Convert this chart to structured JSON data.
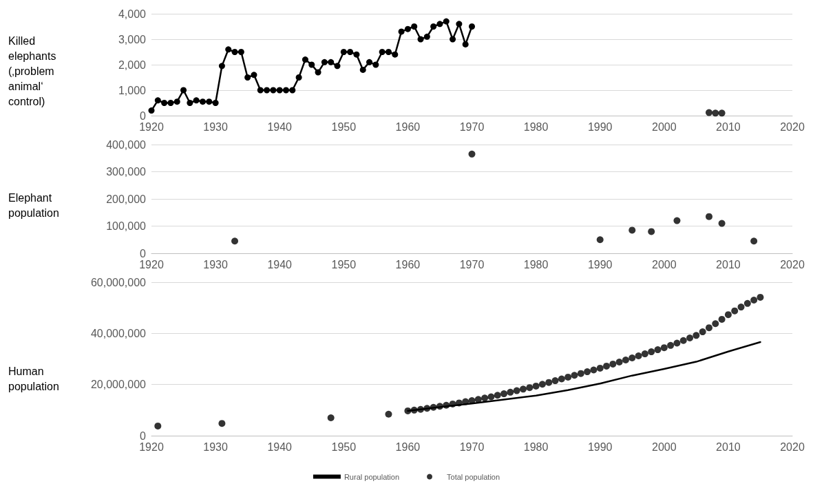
{
  "chart_data": [
    {
      "type": "line",
      "ylabel": "Killed elephants (‚problem animal‘ control)",
      "xlim": [
        1920,
        2020
      ],
      "xticks": [
        1920,
        1930,
        1940,
        1950,
        1960,
        1970,
        1980,
        1990,
        2000,
        2010,
        2020
      ],
      "ylim": [
        0,
        4000
      ],
      "yticks": [
        {
          "value": 0,
          "label": "0"
        },
        {
          "value": 1000,
          "label": "1,000"
        },
        {
          "value": 2000,
          "label": "2,000"
        },
        {
          "value": 3000,
          "label": "3,000"
        },
        {
          "value": 4000,
          "label": "4,000"
        }
      ],
      "grid": "y",
      "marker": "circle",
      "line_style": "solid",
      "legend": false,
      "series": [
        {
          "color": "#000000",
          "x": [
            1920,
            1921,
            1922,
            1923,
            1924,
            1925,
            1926,
            1927,
            1928,
            1929,
            1930,
            1931,
            1932,
            1933,
            1934,
            1935,
            1936,
            1937,
            1938,
            1939,
            1940,
            1941,
            1942,
            1943,
            1944,
            1945,
            1946,
            1947,
            1948,
            1949,
            1950,
            1951,
            1952,
            1953,
            1954,
            1955,
            1956,
            1957,
            1958,
            1959,
            1960,
            1961,
            1962,
            1963,
            1964,
            1965,
            1966,
            1967,
            1968,
            1969,
            1970
          ],
          "values": [
            200,
            600,
            500,
            500,
            550,
            1000,
            500,
            600,
            550,
            550,
            500,
            1950,
            2600,
            2500,
            2500,
            1500,
            1600,
            1000,
            1000,
            1000,
            1000,
            1000,
            1000,
            1500,
            2200,
            2000,
            1700,
            2100,
            2100,
            1950,
            2500,
            2500,
            2400,
            1800,
            2100,
            2000,
            2500,
            2500,
            2400,
            3300,
            3400,
            3500,
            3000,
            3100,
            3500,
            3600,
            3700,
            3000,
            3600,
            2800,
            3500
          ]
        },
        {
          "type": "scatter",
          "color": "#000000",
          "x": [
            2007,
            2008,
            2009
          ],
          "values": [
            120,
            100,
            100
          ]
        }
      ]
    },
    {
      "type": "scatter",
      "ylabel": "Elephant population",
      "xlim": [
        1920,
        2020
      ],
      "xticks": [
        1920,
        1930,
        1940,
        1950,
        1960,
        1970,
        1980,
        1990,
        2000,
        2010,
        2020
      ],
      "ylim": [
        0,
        400000
      ],
      "yticks": [
        {
          "value": 0,
          "label": "0"
        },
        {
          "value": 100000,
          "label": "100,000"
        },
        {
          "value": 200000,
          "label": "200,000"
        },
        {
          "value": 300000,
          "label": "300,000"
        },
        {
          "value": 400000,
          "label": "400,000"
        }
      ],
      "grid": "y",
      "marker": "circle",
      "legend": false,
      "series": [
        {
          "color": "#000000",
          "x": [
            1933,
            1970,
            1990,
            1995,
            1998,
            2002,
            2007,
            2009,
            2014
          ],
          "values": [
            45000,
            365000,
            50000,
            85000,
            80000,
            120000,
            135000,
            110000,
            45000
          ]
        }
      ]
    },
    {
      "type": "scatter",
      "ylabel": "Human population",
      "xlim": [
        1920,
        2020
      ],
      "xticks": [
        1920,
        1930,
        1940,
        1950,
        1960,
        1970,
        1980,
        1990,
        2000,
        2010,
        2020
      ],
      "ylim": [
        0,
        60000000
      ],
      "yticks": [
        {
          "value": 0,
          "label": "0"
        },
        {
          "value": 20000000,
          "label": "20,000,000"
        },
        {
          "value": 40000000,
          "label": "40,000,000"
        },
        {
          "value": 60000000,
          "label": "60,000,000"
        }
      ],
      "grid": "y",
      "legend": "bottom",
      "series": [
        {
          "type": "line",
          "name": "Rural population",
          "color": "#000000",
          "marker": "none",
          "line_style": "solid",
          "x": [
            1960,
            1965,
            1970,
            1975,
            1980,
            1985,
            1990,
            1995,
            2000,
            2005,
            2010,
            2015
          ],
          "values": [
            9700000,
            11200000,
            12600000,
            14100000,
            15700000,
            17800000,
            20400000,
            23500000,
            26100000,
            28900000,
            32900000,
            36600000
          ]
        },
        {
          "name": "Total population",
          "color": "#000000",
          "marker": "circle",
          "x": [
            1921,
            1931,
            1948,
            1957,
            1960,
            1961,
            1962,
            1963,
            1964,
            1965,
            1966,
            1967,
            1968,
            1969,
            1970,
            1971,
            1972,
            1973,
            1974,
            1975,
            1976,
            1977,
            1978,
            1979,
            1980,
            1981,
            1982,
            1983,
            1984,
            1985,
            1986,
            1987,
            1988,
            1989,
            1990,
            1991,
            1992,
            1993,
            1994,
            1995,
            1996,
            1997,
            1998,
            1999,
            2000,
            2001,
            2002,
            2003,
            2004,
            2005,
            2006,
            2007,
            2008,
            2009,
            2010,
            2011,
            2012,
            2013,
            2014,
            2015
          ],
          "values": [
            3800000,
            4800000,
            7000000,
            8400000,
            9700000,
            10000000,
            10300000,
            10700000,
            11100000,
            11500000,
            11900000,
            12400000,
            12800000,
            13300000,
            13700000,
            14200000,
            14700000,
            15200000,
            15800000,
            16400000,
            17000000,
            17600000,
            18200000,
            18800000,
            19400000,
            20100000,
            20800000,
            21500000,
            22200000,
            22900000,
            23600000,
            24300000,
            25000000,
            25700000,
            26400000,
            27200000,
            28000000,
            28800000,
            29600000,
            30400000,
            31200000,
            32000000,
            32800000,
            33600000,
            34400000,
            35300000,
            36200000,
            37200000,
            38200000,
            39200000,
            40600000,
            42200000,
            43800000,
            45500000,
            47300000,
            48800000,
            50300000,
            51700000,
            53000000,
            54100000
          ]
        }
      ]
    }
  ]
}
